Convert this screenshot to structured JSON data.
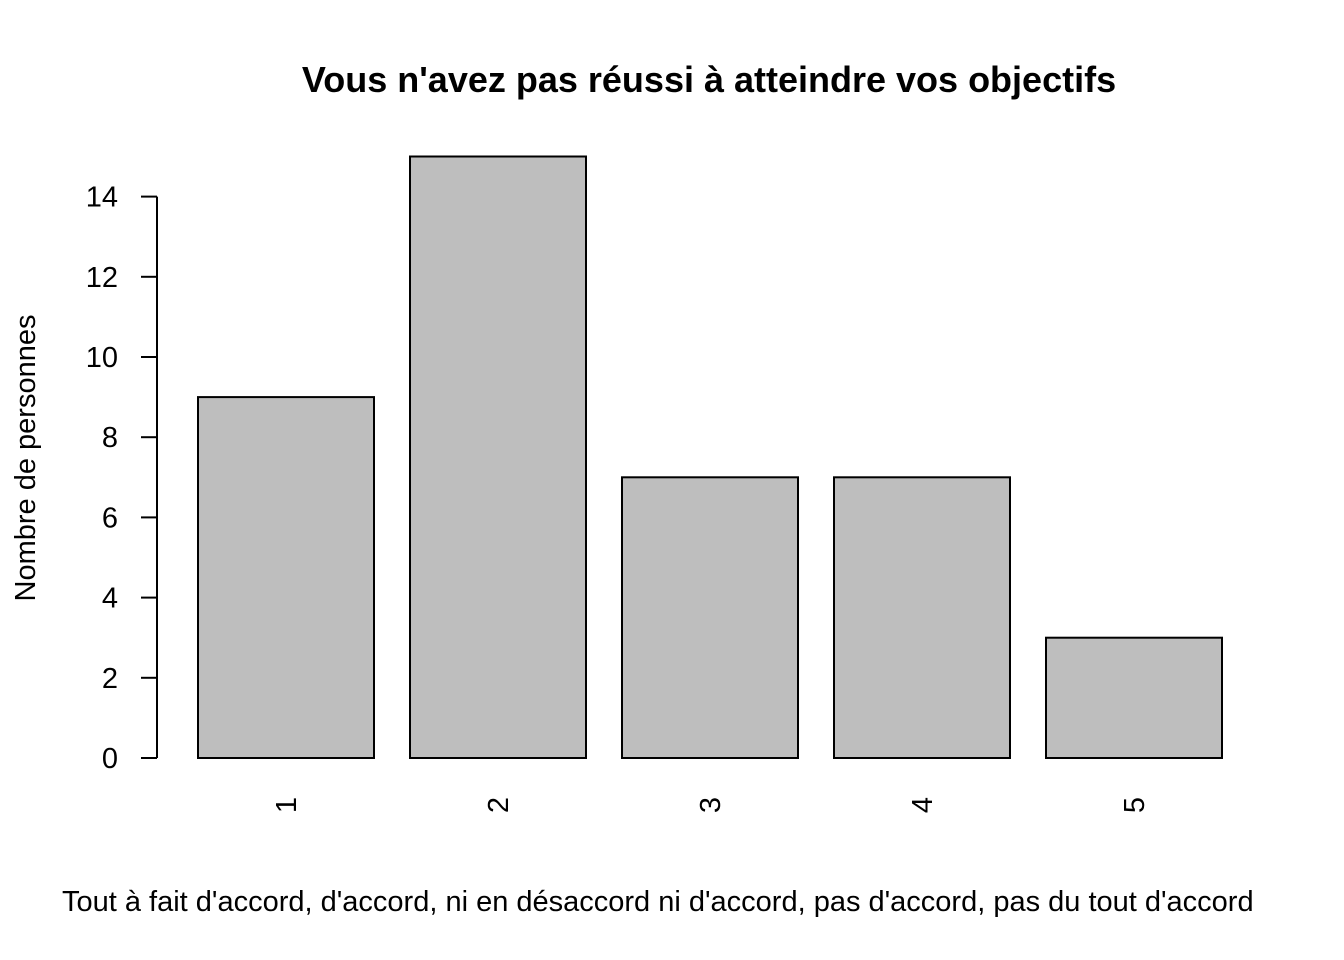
{
  "chart_data": {
    "type": "bar",
    "title": "Vous n'avez pas réussi à atteindre vos objectifs",
    "xlabel": "Tout à fait d'accord, d'accord, ni en désaccord ni d'accord, pas d'accord, pas du tout d'accord",
    "ylabel": "Nombre de personnes",
    "categories": [
      "1",
      "2",
      "3",
      "4",
      "5"
    ],
    "values": [
      9,
      15,
      7,
      7,
      3
    ],
    "ylim": [
      0,
      15
    ],
    "yticks": [
      0,
      2,
      4,
      6,
      8,
      10,
      12,
      14
    ],
    "ytick_labels": [
      "0",
      "2",
      "4",
      "6",
      "8",
      "10",
      "12",
      "14"
    ],
    "grid": false,
    "bar_color": "#bebebe",
    "bar_edge_color": "#000000"
  }
}
